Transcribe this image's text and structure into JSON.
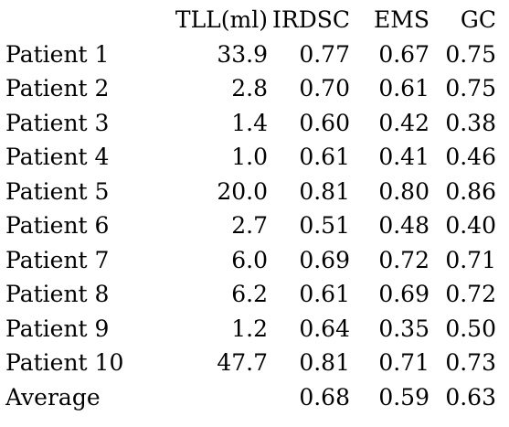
{
  "table": {
    "headers": [
      "",
      "TLL(ml)",
      "IRDSC",
      "EMS",
      "GC"
    ],
    "rows": [
      {
        "name": "Patient 1",
        "tll": "33.9",
        "irdsc": "0.77",
        "ems": "0.67",
        "gc": "0.75"
      },
      {
        "name": "Patient 2",
        "tll": "2.8",
        "irdsc": "0.70",
        "ems": "0.61",
        "gc": "0.75"
      },
      {
        "name": "Patient 3",
        "tll": "1.4",
        "irdsc": "0.60",
        "ems": "0.42",
        "gc": "0.38"
      },
      {
        "name": "Patient 4",
        "tll": "1.0",
        "irdsc": "0.61",
        "ems": "0.41",
        "gc": "0.46"
      },
      {
        "name": "Patient 5",
        "tll": "20.0",
        "irdsc": "0.81",
        "ems": "0.80",
        "gc": "0.86"
      },
      {
        "name": "Patient 6",
        "tll": "2.7",
        "irdsc": "0.51",
        "ems": "0.48",
        "gc": "0.40"
      },
      {
        "name": "Patient 7",
        "tll": "6.0",
        "irdsc": "0.69",
        "ems": "0.72",
        "gc": "0.71"
      },
      {
        "name": "Patient 8",
        "tll": "6.2",
        "irdsc": "0.61",
        "ems": "0.69",
        "gc": "0.72"
      },
      {
        "name": "Patient 9",
        "tll": "1.2",
        "irdsc": "0.64",
        "ems": "0.35",
        "gc": "0.50"
      },
      {
        "name": "Patient 10",
        "tll": "47.7",
        "irdsc": "0.81",
        "ems": "0.71",
        "gc": "0.73"
      },
      {
        "name": "Average",
        "tll": "",
        "irdsc": "0.68",
        "ems": "0.59",
        "gc": "0.63"
      }
    ]
  }
}
